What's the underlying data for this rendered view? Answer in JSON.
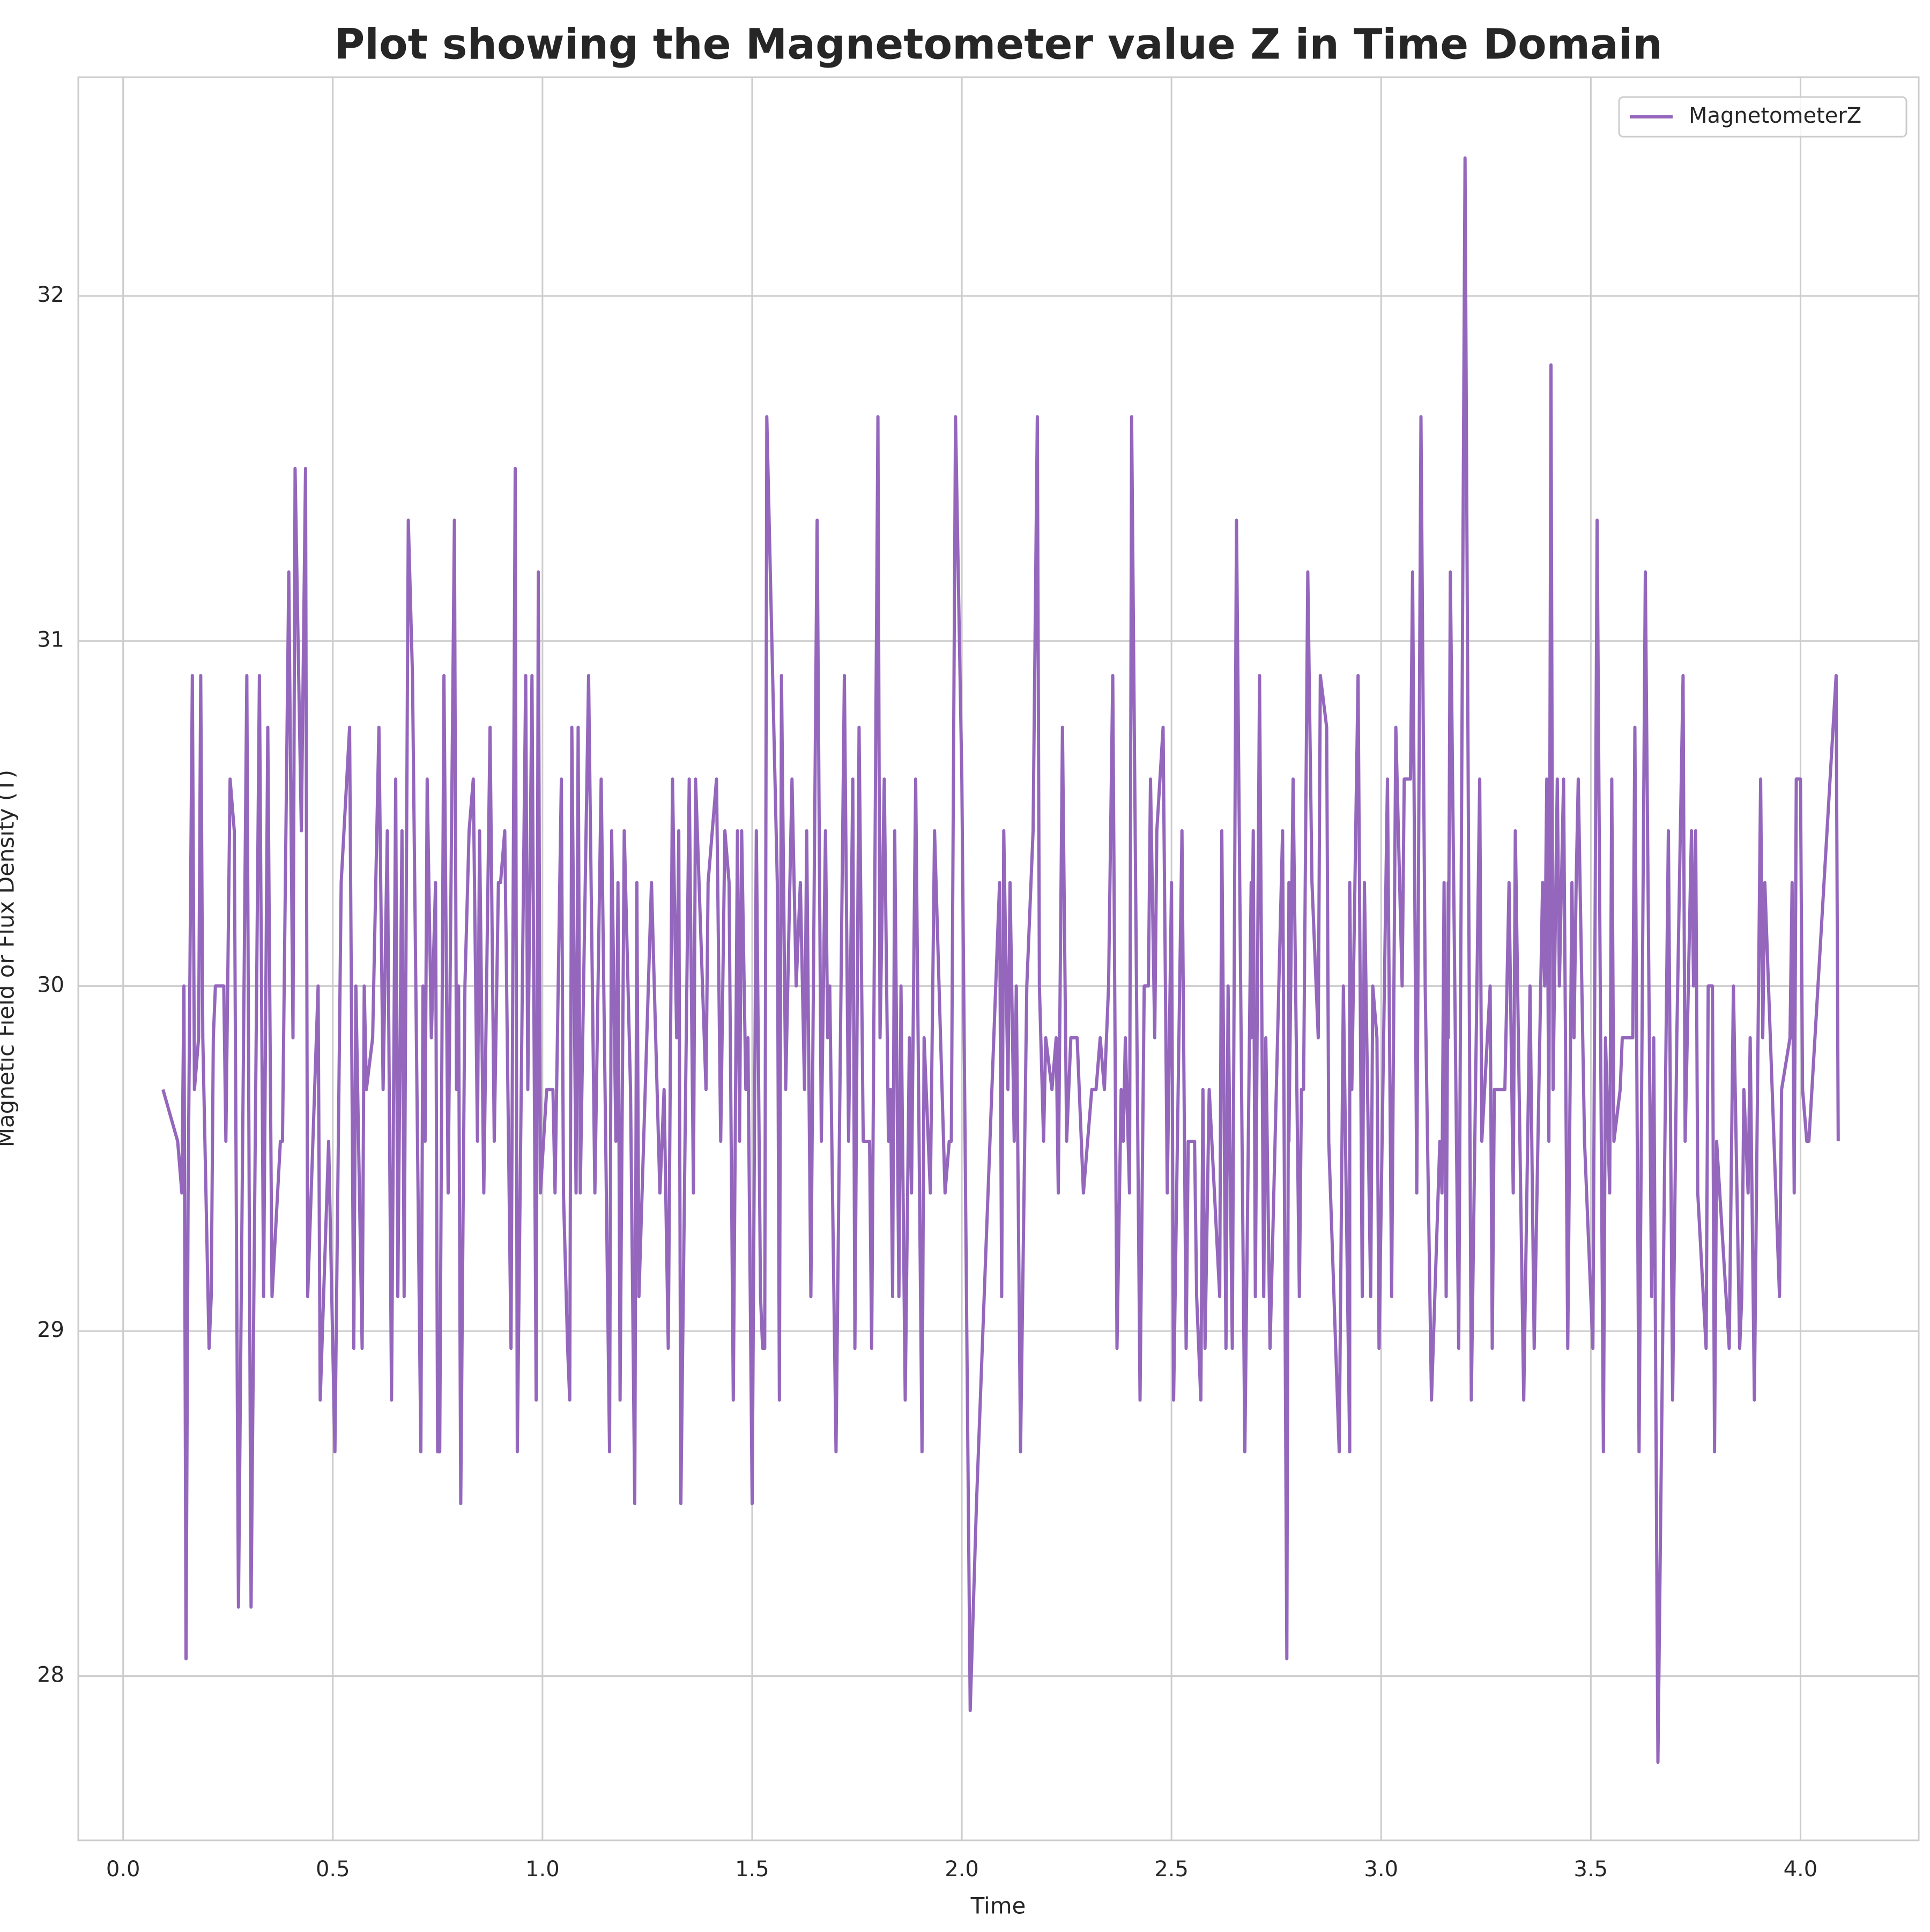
{
  "chart_data": {
    "type": "line",
    "title": "Plot showing the Magnetometer value Z in Time Domain",
    "xlabel": "Time",
    "ylabel": "Magnetic Field or Flux Density (T)",
    "legend": "upper right",
    "grid": true,
    "xlim": [
      -0.107,
      4.282
    ],
    "ylim": [
      27.524,
      32.634
    ],
    "xticks": [
      {
        "value": 0,
        "label": "0.0"
      },
      0.5,
      {
        "value": 1,
        "label": "1.0"
      },
      1.5,
      {
        "value": 2,
        "label": "2.0"
      },
      2.5,
      {
        "value": 3,
        "label": "3.0"
      },
      3.5,
      {
        "value": 4,
        "label": "4.0"
      }
    ],
    "yticks": [
      28,
      29,
      30,
      31,
      32
    ],
    "x": [
      0.095,
      0.13,
      0.14,
      0.145,
      0.15,
      0.155,
      0.165,
      0.17,
      0.18,
      0.185,
      0.19,
      0.205,
      0.21,
      0.215,
      0.22,
      0.24,
      0.245,
      0.255,
      0.265,
      0.275,
      0.295,
      0.305,
      0.325,
      0.335,
      0.345,
      0.355,
      0.375,
      0.38,
      0.395,
      0.405,
      0.41,
      0.425,
      0.435,
      0.44,
      0.465,
      0.47,
      0.49,
      0.505,
      0.52,
      0.54,
      0.55,
      0.555,
      0.57,
      0.575,
      0.58,
      0.595,
      0.61,
      0.62,
      0.63,
      0.64,
      0.65,
      0.655,
      0.665,
      0.67,
      0.68,
      0.69,
      0.71,
      0.715,
      0.72,
      0.725,
      0.735,
      0.745,
      0.75,
      0.755,
      0.765,
      0.775,
      0.79,
      0.795,
      0.8,
      0.805,
      0.815,
      0.825,
      0.835,
      0.845,
      0.85,
      0.86,
      0.875,
      0.885,
      0.895,
      0.9,
      0.91,
      0.925,
      0.935,
      0.94,
      0.96,
      0.965,
      0.975,
      0.985,
      0.99,
      0.995,
      1.01,
      1.025,
      1.03,
      1.045,
      1.05,
      1.06,
      1.065,
      1.07,
      1.08,
      1.085,
      1.09,
      1.11,
      1.125,
      1.14,
      1.16,
      1.165,
      1.175,
      1.18,
      1.185,
      1.195,
      1.21,
      1.22,
      1.225,
      1.23,
      1.26,
      1.28,
      1.29,
      1.3,
      1.31,
      1.32,
      1.325,
      1.33,
      1.35,
      1.36,
      1.365,
      1.39,
      1.395,
      1.415,
      1.425,
      1.435,
      1.445,
      1.455,
      1.465,
      1.47,
      1.475,
      1.485,
      1.49,
      1.5,
      1.51,
      1.52,
      1.525,
      1.53,
      1.535,
      1.56,
      1.565,
      1.57,
      1.58,
      1.595,
      1.605,
      1.615,
      1.625,
      1.63,
      1.64,
      1.655,
      1.665,
      1.675,
      1.68,
      1.685,
      1.7,
      1.72,
      1.73,
      1.74,
      1.745,
      1.755,
      1.765,
      1.78,
      1.785,
      1.8,
      1.805,
      1.815,
      1.825,
      1.83,
      1.835,
      1.84,
      1.85,
      1.855,
      1.865,
      1.875,
      1.88,
      1.89,
      1.905,
      1.91,
      1.925,
      1.935,
      1.96,
      1.97,
      1.975,
      1.985,
      2.0,
      2.02,
      2.035,
      2.09,
      2.095,
      2.1,
      2.11,
      2.115,
      2.125,
      2.13,
      2.14,
      2.155,
      2.17,
      2.18,
      2.185,
      2.195,
      2.2,
      2.215,
      2.225,
      2.23,
      2.24,
      2.25,
      2.26,
      2.275,
      2.29,
      2.31,
      2.32,
      2.33,
      2.34,
      2.35,
      2.36,
      2.37,
      2.38,
      2.385,
      2.39,
      2.4,
      2.405,
      2.425,
      2.435,
      2.445,
      2.45,
      2.46,
      2.465,
      2.48,
      2.49,
      2.5,
      2.505,
      2.525,
      2.535,
      2.54,
      2.555,
      2.56,
      2.57,
      2.575,
      2.58,
      2.59,
      2.615,
      2.62,
      2.63,
      2.635,
      2.645,
      2.655,
      2.675,
      2.69,
      2.69,
      2.695,
      2.7,
      2.71,
      2.72,
      2.725,
      2.735,
      2.765,
      2.775,
      2.78,
      2.78,
      2.79,
      2.805,
      2.81,
      2.815,
      2.825,
      2.835,
      2.85,
      2.855,
      2.87,
      2.875,
      2.9,
      2.91,
      2.925,
      2.925,
      2.93,
      2.945,
      2.955,
      2.96,
      2.975,
      2.98,
      2.99,
      2.995,
      3.015,
      3.025,
      3.035,
      3.05,
      3.055,
      3.07,
      3.075,
      3.085,
      3.095,
      3.105,
      3.12,
      3.14,
      3.145,
      3.15,
      3.155,
      3.16,
      3.16,
      3.165,
      3.185,
      3.2,
      3.215,
      3.235,
      3.24,
      3.26,
      3.265,
      3.27,
      3.295,
      3.305,
      3.315,
      3.32,
      3.34,
      3.355,
      3.365,
      3.385,
      3.39,
      3.395,
      3.4,
      3.405,
      3.41,
      3.42,
      3.425,
      3.435,
      3.445,
      3.455,
      3.46,
      3.465,
      3.47,
      3.485,
      3.505,
      3.515,
      3.53,
      3.535,
      3.545,
      3.55,
      3.555,
      3.57,
      3.575,
      3.6,
      3.605,
      3.615,
      3.63,
      3.645,
      3.65,
      3.66,
      3.685,
      3.695,
      3.705,
      3.72,
      3.725,
      3.74,
      3.745,
      3.75,
      3.755,
      3.775,
      3.78,
      3.79,
      3.795,
      3.8,
      3.83,
      3.84,
      3.855,
      3.86,
      3.865,
      3.875,
      3.88,
      3.89,
      3.905,
      3.91,
      3.915,
      3.95,
      3.955,
      3.975,
      3.98,
      3.985,
      3.99,
      4.0,
      4.005,
      4.015,
      4.02,
      4.085,
      4.09
    ],
    "series": [
      {
        "name": "MagnetometerZ",
        "color": "#9467bd",
        "values": [
          29.7,
          29.55,
          29.4,
          30.0,
          28.05,
          29.4,
          30.9,
          29.7,
          29.85,
          30.9,
          29.85,
          28.95,
          29.1,
          29.85,
          30.0,
          30.0,
          29.55,
          30.6,
          30.45,
          28.2,
          30.9,
          28.2,
          30.9,
          29.1,
          30.75,
          29.1,
          29.55,
          29.55,
          31.2,
          29.85,
          31.5,
          30.45,
          31.5,
          29.1,
          30.0,
          28.8,
          29.55,
          28.65,
          30.3,
          30.75,
          28.95,
          30.0,
          28.95,
          30.0,
          29.7,
          29.85,
          30.75,
          29.7,
          30.45,
          28.8,
          30.6,
          29.1,
          30.45,
          29.1,
          31.35,
          30.9,
          28.65,
          30.0,
          29.55,
          30.6,
          29.85,
          30.3,
          28.65,
          28.65,
          30.9,
          29.4,
          31.35,
          29.7,
          30.0,
          28.5,
          30.0,
          30.45,
          30.6,
          29.55,
          30.45,
          29.4,
          30.75,
          29.55,
          30.3,
          30.3,
          30.45,
          28.95,
          31.5,
          28.65,
          30.9,
          29.7,
          30.9,
          28.8,
          31.2,
          29.4,
          29.7,
          29.7,
          29.4,
          30.6,
          29.4,
          28.95,
          28.8,
          30.75,
          29.4,
          30.75,
          29.4,
          30.9,
          29.4,
          30.6,
          28.65,
          30.45,
          29.55,
          30.3,
          28.8,
          30.45,
          29.7,
          28.5,
          30.3,
          29.1,
          30.3,
          29.4,
          29.7,
          28.95,
          30.6,
          29.85,
          30.45,
          28.5,
          30.6,
          29.4,
          30.6,
          29.7,
          30.3,
          30.6,
          29.55,
          30.45,
          30.3,
          28.8,
          30.45,
          29.55,
          30.45,
          29.7,
          29.85,
          28.5,
          30.45,
          29.1,
          28.95,
          28.95,
          31.65,
          30.3,
          28.8,
          30.9,
          29.7,
          30.6,
          30.0,
          30.3,
          29.7,
          30.45,
          29.1,
          31.35,
          29.55,
          30.45,
          29.85,
          30.0,
          28.65,
          30.9,
          29.55,
          30.6,
          28.95,
          30.75,
          29.55,
          29.55,
          28.95,
          31.65,
          29.85,
          30.6,
          29.55,
          29.7,
          29.1,
          30.45,
          29.1,
          30.0,
          28.8,
          29.85,
          29.4,
          30.6,
          28.65,
          29.85,
          29.4,
          30.45,
          29.4,
          29.55,
          29.55,
          31.65,
          30.6,
          27.9,
          28.5,
          30.3,
          29.1,
          30.45,
          29.7,
          30.3,
          29.55,
          30.0,
          28.65,
          30.0,
          30.45,
          31.65,
          30.0,
          29.55,
          29.85,
          29.7,
          29.85,
          29.4,
          30.75,
          29.55,
          29.85,
          29.85,
          29.4,
          29.7,
          29.7,
          29.85,
          29.7,
          30.0,
          30.9,
          28.95,
          29.7,
          29.55,
          29.85,
          29.4,
          31.65,
          28.8,
          30.0,
          30.0,
          30.6,
          29.85,
          30.45,
          30.75,
          29.4,
          30.3,
          28.8,
          30.45,
          28.95,
          29.55,
          29.55,
          29.1,
          28.8,
          29.7,
          28.95,
          29.7,
          29.1,
          30.45,
          28.95,
          30.0,
          28.95,
          31.35,
          28.65,
          30.3,
          29.85,
          30.45,
          29.1,
          30.9,
          29.1,
          29.85,
          28.95,
          30.45,
          28.05,
          30.3,
          29.55,
          30.6,
          29.1,
          29.7,
          29.7,
          31.2,
          30.3,
          29.85,
          30.9,
          30.75,
          29.55,
          28.65,
          30.0,
          28.65,
          30.3,
          29.7,
          30.9,
          29.1,
          30.3,
          29.1,
          30.0,
          29.85,
          28.95,
          30.6,
          29.1,
          30.75,
          30.0,
          30.6,
          30.6,
          31.2,
          29.4,
          31.65,
          30.0,
          28.8,
          29.55,
          29.4,
          30.3,
          29.1,
          30.3,
          29.85,
          31.2,
          28.95,
          32.4,
          28.8,
          30.6,
          29.55,
          30.0,
          28.95,
          29.7,
          29.7,
          30.3,
          29.4,
          30.45,
          28.8,
          30.0,
          28.95,
          30.3,
          30.0,
          30.6,
          29.55,
          31.8,
          29.7,
          30.6,
          30.0,
          30.6,
          28.95,
          30.3,
          29.85,
          30.3,
          30.6,
          29.55,
          28.95,
          31.35,
          28.65,
          29.85,
          29.4,
          30.6,
          29.55,
          29.7,
          29.85,
          29.85,
          30.75,
          28.65,
          31.2,
          29.1,
          29.85,
          27.75,
          30.45,
          28.8,
          29.85,
          30.9,
          29.55,
          30.45,
          30.0,
          30.45,
          29.4,
          28.95,
          30.0,
          30.0,
          28.65,
          29.55,
          28.95,
          30.0,
          28.95,
          29.1,
          29.7,
          29.4,
          29.85,
          28.8,
          30.6,
          29.85,
          30.3,
          29.1,
          29.7,
          29.85,
          30.3,
          29.4,
          30.6,
          30.6,
          29.7,
          29.55,
          29.55,
          30.9,
          29.55
        ]
      }
    ]
  }
}
